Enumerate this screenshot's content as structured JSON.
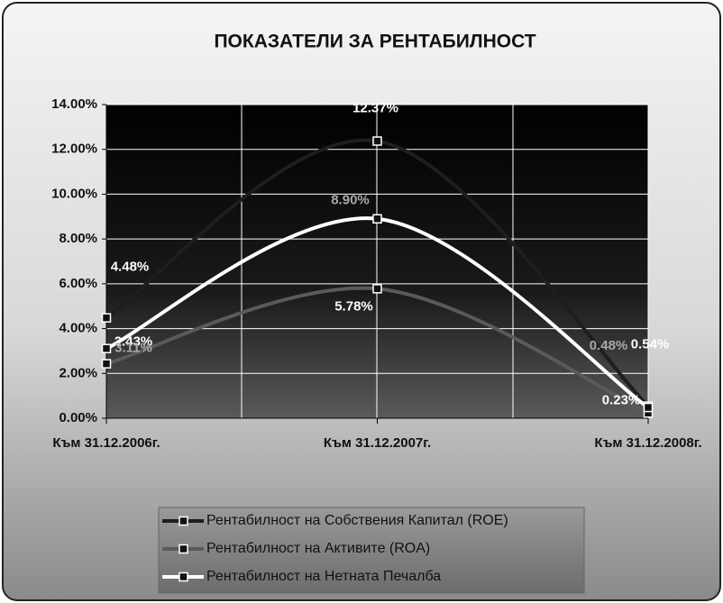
{
  "chart_data": {
    "type": "line",
    "title": "ПОКАЗАТЕЛИ ЗА РЕНТАБИЛНОСТ",
    "categories": [
      "Към 31.12.2006г.",
      "Към 31.12.2007г.",
      "Към 31.12.2008г."
    ],
    "series": [
      {
        "name": "Рентабилност на Собствения Капитал (ROE)",
        "color": "#1e1e1e",
        "label_color": "#ffffff",
        "values": [
          4.48,
          12.37,
          0.54
        ],
        "value_labels": [
          "4.48%",
          "12.37%",
          "0.54%"
        ]
      },
      {
        "name": "Рентабилност на Активите (ROA)",
        "color": "#5a5a5a",
        "label_color": "#ffffff",
        "values": [
          2.43,
          5.78,
          0.23
        ],
        "value_labels": [
          "2.43%",
          "5.78%",
          "0.23%"
        ]
      },
      {
        "name": "Рентабилност на Нетната Печалба",
        "color": "#ffffff",
        "label_color": "#a8a8a8",
        "values": [
          3.11,
          8.9,
          0.48
        ],
        "value_labels": [
          "3.11%",
          "8.90%",
          "0.48%"
        ]
      }
    ],
    "ylim": [
      0,
      14
    ],
    "yticks": [
      {
        "value": 0,
        "label": "0.00%"
      },
      {
        "value": 2,
        "label": "2.00%"
      },
      {
        "value": 4,
        "label": "4.00%"
      },
      {
        "value": 6,
        "label": "6.00%"
      },
      {
        "value": 8,
        "label": "8.00%"
      },
      {
        "value": 10,
        "label": "10.00%"
      },
      {
        "value": 12,
        "label": "12.00%"
      },
      {
        "value": 14,
        "label": "14.00%"
      }
    ],
    "grid": true,
    "smooth": true,
    "legend": "bottom"
  }
}
